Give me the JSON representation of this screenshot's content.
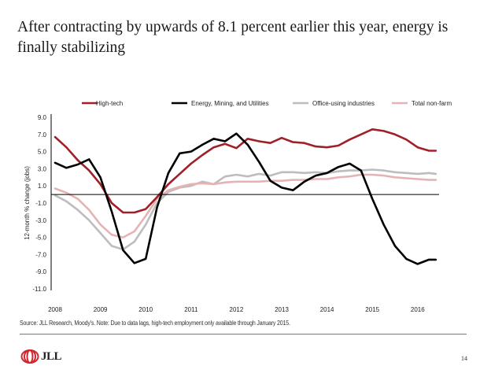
{
  "slide": {
    "title": "After contracting by upwards of 8.1 percent earlier this year, energy is finally stabilizing",
    "source_note": "Source: JLL Research, Moody's. Note: Due to data lags, high-tech employment only available through January 2015.",
    "page_number": "14",
    "logo_text": "JLL",
    "logo_icon": "jll-rings-logo-icon"
  },
  "chart_data": {
    "type": "line",
    "title": "",
    "xlabel": "",
    "ylabel": "12-month % change (jobs)",
    "ylim": [
      -11.0,
      9.0
    ],
    "xlim": [
      2008.0,
      2016.45
    ],
    "yticks": [
      "9.0",
      "7.0",
      "5.0",
      "3.0",
      "1.0",
      "-1.0",
      "-3.0",
      "-5.0",
      "-7.0",
      "-9.0",
      "-11.0"
    ],
    "ytick_values": [
      9,
      7,
      5,
      3,
      1,
      -1,
      -3,
      -5,
      -7,
      -9,
      -11
    ],
    "xticks": [
      "2008",
      "2009",
      "2010",
      "2011",
      "2012",
      "2013",
      "2014",
      "2015",
      "2016"
    ],
    "xtick_values": [
      2008,
      2009,
      2010,
      2011,
      2012,
      2013,
      2014,
      2015,
      2016
    ],
    "grid": false,
    "zero_line": true,
    "legend_position": "top",
    "x": [
      2008.0,
      2008.25,
      2008.5,
      2008.75,
      2009.0,
      2009.25,
      2009.5,
      2009.75,
      2010.0,
      2010.25,
      2010.5,
      2010.75,
      2011.0,
      2011.25,
      2011.5,
      2011.75,
      2012.0,
      2012.25,
      2012.5,
      2012.75,
      2013.0,
      2013.25,
      2013.5,
      2013.75,
      2014.0,
      2014.25,
      2014.5,
      2014.75,
      2015.0,
      2015.25,
      2015.5,
      2015.75,
      2016.0,
      2016.25,
      2016.4
    ],
    "series": [
      {
        "name": "High-tech",
        "color": "#a0202a",
        "values": [
          6.7,
          5.5,
          4.0,
          2.8,
          1.2,
          -1.0,
          -2.1,
          -2.1,
          -1.7,
          -0.3,
          1.2,
          2.4,
          3.6,
          4.6,
          5.5,
          5.9,
          5.4,
          6.5,
          6.2,
          6.0,
          6.6,
          6.1,
          6.0,
          5.6,
          5.5,
          5.7,
          6.4,
          7.0,
          7.6,
          7.4,
          7.0,
          6.4,
          5.5,
          5.1,
          5.1
        ]
      },
      {
        "name": "Energy, Mining, and Utilities",
        "color": "#000000",
        "values": [
          3.7,
          3.1,
          3.5,
          4.1,
          2.0,
          -2.0,
          -6.5,
          -8.0,
          -7.5,
          -1.5,
          2.5,
          4.8,
          5.0,
          5.8,
          6.5,
          6.2,
          7.1,
          5.8,
          3.8,
          1.6,
          0.8,
          0.5,
          1.5,
          2.2,
          2.5,
          3.2,
          3.6,
          2.8,
          -0.5,
          -3.5,
          -6.0,
          -7.5,
          -8.1,
          -7.6,
          -7.6
        ]
      },
      {
        "name": "Office-using industries",
        "color": "#bdbdbd",
        "values": [
          -0.1,
          -0.8,
          -1.8,
          -3.0,
          -4.5,
          -6.0,
          -6.4,
          -5.5,
          -3.5,
          -1.0,
          0.3,
          0.8,
          1.0,
          1.5,
          1.2,
          2.1,
          2.3,
          2.1,
          2.4,
          2.2,
          2.6,
          2.6,
          2.5,
          2.6,
          2.5,
          2.7,
          2.8,
          2.8,
          2.9,
          2.8,
          2.6,
          2.5,
          2.4,
          2.5,
          2.4
        ]
      },
      {
        "name": "Total non-farm",
        "color": "#e6b3b5",
        "values": [
          0.7,
          0.2,
          -0.5,
          -1.8,
          -3.5,
          -4.7,
          -5.0,
          -4.3,
          -2.5,
          -0.5,
          0.5,
          0.9,
          1.2,
          1.3,
          1.2,
          1.4,
          1.5,
          1.5,
          1.5,
          1.6,
          1.6,
          1.7,
          1.7,
          1.8,
          1.8,
          2.0,
          2.1,
          2.3,
          2.3,
          2.2,
          2.0,
          1.9,
          1.8,
          1.7,
          1.7
        ]
      }
    ]
  }
}
